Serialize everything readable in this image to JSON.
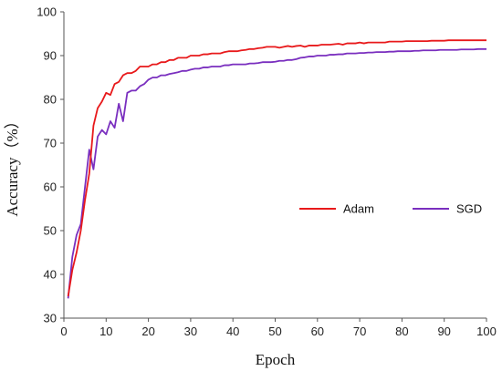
{
  "chart_data": {
    "type": "line",
    "xlabel": "Epoch",
    "ylabel": "Accuracy（%）",
    "xlim": [
      0,
      100
    ],
    "ylim": [
      30,
      100
    ],
    "xticks": [
      0,
      10,
      20,
      30,
      40,
      50,
      60,
      70,
      80,
      90,
      100
    ],
    "yticks": [
      30,
      40,
      50,
      60,
      70,
      80,
      90,
      100
    ],
    "grid": false,
    "legend_position": "right-middle",
    "series": [
      {
        "name": "Adam",
        "color": "#e8191b",
        "x": [
          1,
          2,
          3,
          4,
          5,
          6,
          7,
          8,
          9,
          10,
          11,
          12,
          13,
          14,
          15,
          16,
          17,
          18,
          19,
          20,
          21,
          22,
          23,
          24,
          25,
          26,
          27,
          28,
          29,
          30,
          31,
          32,
          33,
          34,
          35,
          36,
          37,
          38,
          39,
          40,
          41,
          42,
          43,
          44,
          45,
          46,
          47,
          48,
          49,
          50,
          51,
          52,
          53,
          54,
          55,
          56,
          57,
          58,
          59,
          60,
          61,
          62,
          63,
          64,
          65,
          66,
          67,
          68,
          69,
          70,
          71,
          72,
          73,
          74,
          75,
          76,
          77,
          78,
          79,
          80,
          81,
          82,
          83,
          84,
          85,
          86,
          87,
          88,
          89,
          90,
          91,
          92,
          93,
          94,
          95,
          96,
          97,
          98,
          99,
          100
        ],
        "values": [
          35.0,
          41.0,
          45.0,
          50.0,
          57.0,
          63.0,
          74.0,
          78.0,
          79.5,
          81.5,
          81.0,
          83.5,
          84.0,
          85.5,
          86.0,
          86.0,
          86.5,
          87.5,
          87.5,
          87.5,
          88.0,
          88.0,
          88.5,
          88.5,
          89.0,
          89.0,
          89.5,
          89.5,
          89.5,
          90.0,
          90.0,
          90.0,
          90.3,
          90.3,
          90.5,
          90.5,
          90.5,
          90.8,
          91.0,
          91.0,
          91.0,
          91.2,
          91.3,
          91.5,
          91.5,
          91.7,
          91.8,
          92.0,
          92.0,
          92.0,
          91.8,
          92.0,
          92.2,
          92.0,
          92.2,
          92.3,
          92.0,
          92.3,
          92.3,
          92.3,
          92.5,
          92.5,
          92.5,
          92.6,
          92.7,
          92.5,
          92.8,
          92.8,
          92.8,
          93.0,
          92.8,
          93.0,
          93.0,
          93.0,
          93.0,
          93.0,
          93.2,
          93.2,
          93.2,
          93.2,
          93.3,
          93.3,
          93.3,
          93.3,
          93.3,
          93.3,
          93.4,
          93.4,
          93.4,
          93.4,
          93.5,
          93.5,
          93.5,
          93.5,
          93.5,
          93.5,
          93.5,
          93.5,
          93.5,
          93.5
        ]
      },
      {
        "name": "SGD",
        "color": "#7a2fbf",
        "x": [
          1,
          2,
          3,
          4,
          5,
          6,
          7,
          8,
          9,
          10,
          11,
          12,
          13,
          14,
          15,
          16,
          17,
          18,
          19,
          20,
          21,
          22,
          23,
          24,
          25,
          26,
          27,
          28,
          29,
          30,
          31,
          32,
          33,
          34,
          35,
          36,
          37,
          38,
          39,
          40,
          41,
          42,
          43,
          44,
          45,
          46,
          47,
          48,
          49,
          50,
          51,
          52,
          53,
          54,
          55,
          56,
          57,
          58,
          59,
          60,
          61,
          62,
          63,
          64,
          65,
          66,
          67,
          68,
          69,
          70,
          71,
          72,
          73,
          74,
          75,
          76,
          77,
          78,
          79,
          80,
          81,
          82,
          83,
          84,
          85,
          86,
          87,
          88,
          89,
          90,
          91,
          92,
          93,
          94,
          95,
          96,
          97,
          98,
          99,
          100
        ],
        "values": [
          34.5,
          44.0,
          49.0,
          51.5,
          60.0,
          68.5,
          64.0,
          71.5,
          73.0,
          72.0,
          75.0,
          73.5,
          79.0,
          75.0,
          81.5,
          82.0,
          82.0,
          83.0,
          83.5,
          84.5,
          85.0,
          85.0,
          85.5,
          85.5,
          85.8,
          86.0,
          86.2,
          86.5,
          86.5,
          86.8,
          87.0,
          87.0,
          87.3,
          87.3,
          87.5,
          87.5,
          87.5,
          87.8,
          87.8,
          88.0,
          88.0,
          88.0,
          88.0,
          88.2,
          88.2,
          88.3,
          88.5,
          88.5,
          88.5,
          88.6,
          88.8,
          88.8,
          89.0,
          89.0,
          89.2,
          89.5,
          89.6,
          89.8,
          89.8,
          90.0,
          90.0,
          90.0,
          90.2,
          90.2,
          90.3,
          90.3,
          90.5,
          90.5,
          90.5,
          90.6,
          90.6,
          90.7,
          90.7,
          90.8,
          90.8,
          90.8,
          90.9,
          90.9,
          91.0,
          91.0,
          91.0,
          91.0,
          91.1,
          91.1,
          91.2,
          91.2,
          91.2,
          91.2,
          91.3,
          91.3,
          91.3,
          91.3,
          91.3,
          91.4,
          91.4,
          91.4,
          91.4,
          91.5,
          91.5,
          91.5
        ]
      }
    ]
  }
}
